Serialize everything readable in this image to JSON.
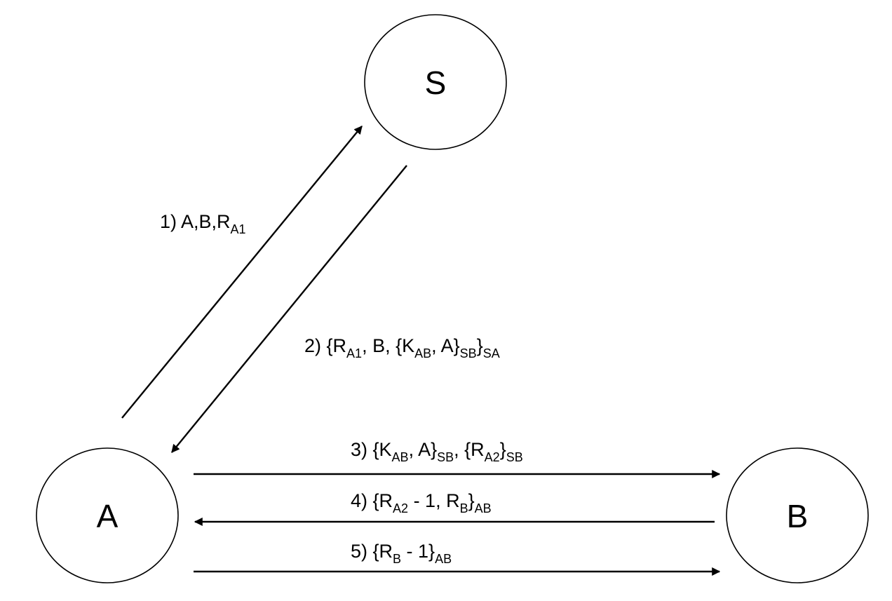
{
  "colors": {
    "stroke": "#000000",
    "background": "#ffffff"
  },
  "nodes": {
    "S": {
      "label": "S"
    },
    "A": {
      "label": "A"
    },
    "B": {
      "label": "B"
    }
  },
  "messages": [
    {
      "from": "A",
      "to": "S",
      "parts": [
        {
          "t": "1) A,B,R"
        },
        {
          "t": "A1",
          "sub": true
        }
      ]
    },
    {
      "from": "S",
      "to": "A",
      "parts": [
        {
          "t": "2) {R"
        },
        {
          "t": "A1",
          "sub": true
        },
        {
          "t": ", B, {K"
        },
        {
          "t": "AB",
          "sub": true
        },
        {
          "t": ", A}"
        },
        {
          "t": "SB",
          "sub": true
        },
        {
          "t": "}"
        },
        {
          "t": "SA",
          "sub": true
        }
      ]
    },
    {
      "from": "A",
      "to": "B",
      "parts": [
        {
          "t": "3) {K"
        },
        {
          "t": "AB",
          "sub": true
        },
        {
          "t": ", A}"
        },
        {
          "t": "SB",
          "sub": true
        },
        {
          "t": ", {R"
        },
        {
          "t": "A2",
          "sub": true
        },
        {
          "t": "}"
        },
        {
          "t": "SB",
          "sub": true
        }
      ]
    },
    {
      "from": "B",
      "to": "A",
      "parts": [
        {
          "t": "4) {R"
        },
        {
          "t": "A2",
          "sub": true
        },
        {
          "t": " - 1, R"
        },
        {
          "t": "B",
          "sub": true
        },
        {
          "t": "}"
        },
        {
          "t": "AB",
          "sub": true
        }
      ]
    },
    {
      "from": "A",
      "to": "B",
      "parts": [
        {
          "t": "5) {R"
        },
        {
          "t": "B",
          "sub": true
        },
        {
          "t": " - 1}"
        },
        {
          "t": "AB",
          "sub": true
        }
      ]
    }
  ]
}
